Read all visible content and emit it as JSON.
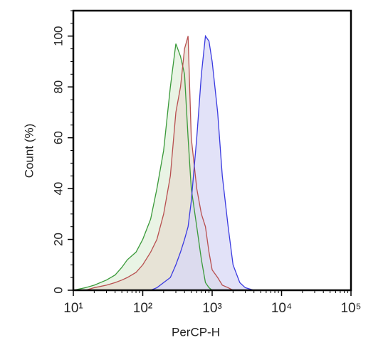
{
  "chart_data": {
    "type": "area",
    "x_label": "PerCP-H",
    "y_label": "Count (%)",
    "x_scale": "log",
    "xlim": [
      10,
      100000
    ],
    "xticks": [
      {
        "value": 10,
        "label": "10¹"
      },
      {
        "value": 100,
        "label": "10²"
      },
      {
        "value": 1000,
        "label": "10³"
      },
      {
        "value": 10000,
        "label": "10⁴"
      },
      {
        "value": 100000,
        "label": "10⁵"
      }
    ],
    "ylim": [
      0,
      110
    ],
    "yticks": [
      0,
      20,
      40,
      60,
      80,
      100
    ],
    "x": [
      10,
      15,
      20,
      30,
      40,
      50,
      60,
      80,
      100,
      130,
      160,
      200,
      250,
      300,
      350,
      400,
      450,
      500,
      600,
      700,
      800,
      900,
      1000,
      1200,
      1400,
      1700,
      2000,
      2500,
      3000,
      4000,
      5000
    ],
    "series": [
      {
        "color": "#3a9a3a",
        "fill": "#e2f0dc",
        "values": [
          0,
          1,
          2,
          4,
          6,
          9,
          12,
          15,
          20,
          28,
          40,
          55,
          80,
          97,
          92,
          85,
          60,
          40,
          25,
          12,
          3,
          1,
          0,
          0,
          0,
          0,
          0,
          0,
          0,
          0,
          0
        ]
      },
      {
        "color": "#b85050",
        "fill": "#e6ddd0",
        "values": [
          0,
          0,
          1,
          2,
          3,
          4,
          5,
          7,
          10,
          15,
          20,
          30,
          45,
          70,
          80,
          95,
          100,
          60,
          40,
          30,
          25,
          15,
          8,
          5,
          2,
          1,
          0,
          0,
          0,
          0,
          0
        ]
      },
      {
        "color": "#3a3ae0",
        "fill": "#d8d8f6",
        "values": [
          0,
          0,
          0,
          0,
          0,
          0,
          0,
          0,
          0,
          0,
          1,
          3,
          5,
          10,
          15,
          20,
          25,
          35,
          60,
          85,
          100,
          98,
          90,
          70,
          45,
          25,
          10,
          3,
          1,
          0,
          0
        ]
      }
    ]
  }
}
